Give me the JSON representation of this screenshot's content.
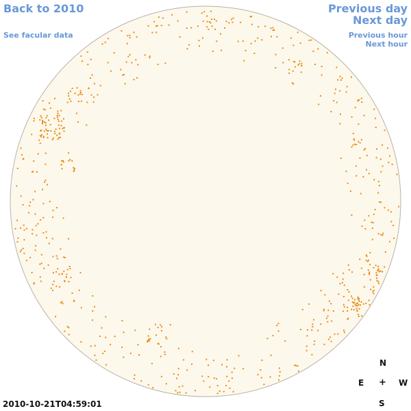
{
  "nav": {
    "back_label": "Back to 2010",
    "facular_label": "See facular data",
    "prev_day_label": "Previous day",
    "next_day_label": "Next day",
    "prev_hour_label": "Previous hour",
    "next_hour_label": "Next hour"
  },
  "timestamp": "2010-10-21T04:59:01",
  "compass": {
    "north": "N",
    "east": "E",
    "center": "+",
    "west": "W",
    "south": "S"
  },
  "colors": {
    "disk_fill": "#fdf8ec",
    "disk_stroke": "#b9b2a6",
    "faculae": "#e98a10",
    "link": "#6a98d8"
  }
}
